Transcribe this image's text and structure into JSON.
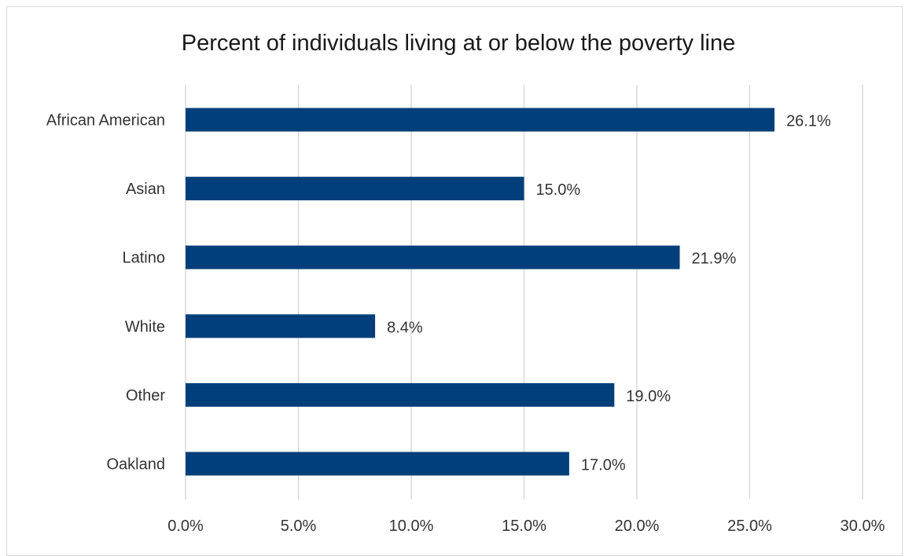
{
  "chart_data": {
    "type": "bar",
    "orientation": "horizontal",
    "title": "Percent of individuals living at or below the poverty line",
    "categories": [
      "African American",
      "Asian",
      "Latino",
      "White",
      "Other",
      "Oakland"
    ],
    "values": [
      26.1,
      15.0,
      21.9,
      8.4,
      19.0,
      17.0
    ],
    "data_labels": [
      "26.1%",
      "15.0%",
      "21.9%",
      "8.4%",
      "19.0%",
      "17.0%"
    ],
    "xlim": [
      0,
      30
    ],
    "xticks": [
      0,
      5,
      10,
      15,
      20,
      25,
      30
    ],
    "xtick_labels": [
      "0.0%",
      "5.0%",
      "10.0%",
      "15.0%",
      "20.0%",
      "25.0%",
      "30.0%"
    ],
    "xlabel": "",
    "ylabel": "",
    "grid": "vertical",
    "legend": "none",
    "bar_color": "#003f7a"
  }
}
